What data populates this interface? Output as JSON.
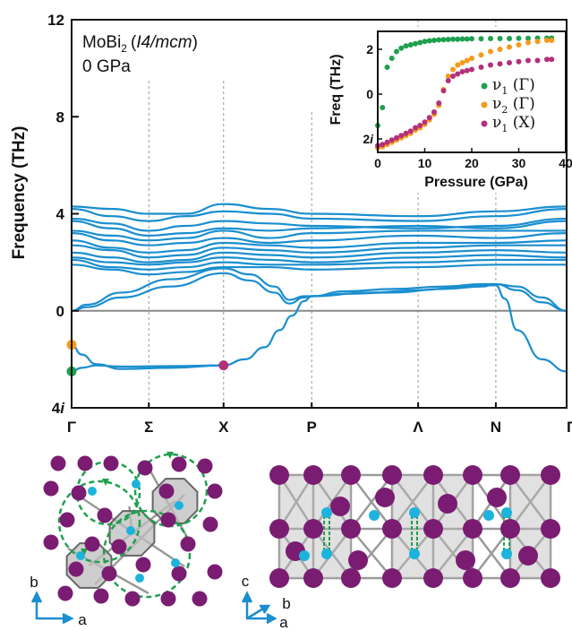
{
  "chart_data": [
    {
      "type": "line",
      "title": "MoBi2 (I4/mcm)",
      "title_parts": {
        "compound_base": "MoBi",
        "compound_sub": "2",
        "space_group_open": "(",
        "space_group_italic": "I4/mcm",
        "space_group_close": ")"
      },
      "subtitle": "0 GPa",
      "ylabel": "Frequency (THz)",
      "xlabel": "",
      "yticks": [
        "12",
        "8",
        "4",
        "0",
        "4i"
      ],
      "ytick_values": [
        12,
        8,
        4,
        0,
        -4
      ],
      "ylim": [
        -4,
        12
      ],
      "imaginary_frequencies_negative": true,
      "kpath": [
        "Γ",
        "Σ",
        "X",
        "P",
        "Λ",
        "N",
        "Γ"
      ],
      "kpath_positions": [
        0,
        0.156,
        0.307,
        0.485,
        0.7,
        0.857,
        1.0
      ],
      "high_symmetry_lines_dashed": true,
      "zero_line": true,
      "line_color": "#1a8ecf",
      "acoustic_branches": [
        {
          "name": "",
          "x": [
            0,
            0.03,
            0.1,
            0.2,
            0.307,
            0.36,
            0.41,
            0.44,
            0.47,
            0.485,
            0.55,
            0.65,
            0.75,
            0.83,
            0.857,
            0.9,
            0.95,
            1.0
          ],
          "y": [
            0,
            0.15,
            0.55,
            1.0,
            1.55,
            1.25,
            0.75,
            0.3,
            0.55,
            0.6,
            0.7,
            0.75,
            0.9,
            1.0,
            1.1,
            0.85,
            0.35,
            0
          ]
        },
        {
          "name": "",
          "x": [
            0,
            0.03,
            0.1,
            0.2,
            0.307,
            0.36,
            0.41,
            0.44,
            0.47,
            0.485,
            0.55,
            0.65,
            0.75,
            0.83,
            0.857,
            0.9,
            0.95,
            1.0
          ],
          "y": [
            0,
            0.25,
            0.75,
            1.3,
            1.75,
            1.5,
            1.0,
            0.45,
            0.6,
            0.6,
            0.8,
            0.9,
            1.0,
            1.1,
            1.1,
            1.0,
            0.55,
            0
          ]
        }
      ],
      "soft_branch": {
        "x": [
          0,
          0.02,
          0.05,
          0.1,
          0.2,
          0.307,
          0.35,
          0.39,
          0.42,
          0.445,
          0.47,
          0.485,
          0.485,
          0.6,
          0.7,
          0.8,
          0.857,
          0.875,
          0.9,
          0.95,
          1.0
        ],
        "y": [
          -2.5,
          -2.35,
          -2.25,
          -2.3,
          -2.28,
          -2.25,
          -2.0,
          -1.5,
          -0.8,
          -0.2,
          0.4,
          0.6,
          0.6,
          0.75,
          0.85,
          1.0,
          1.05,
          0.5,
          -0.8,
          -2.0,
          -2.5
        ]
      },
      "soft_branch_2": {
        "x": [
          0,
          0.02,
          0.05,
          0.1,
          0.2,
          0.307
        ],
        "y": [
          -1.4,
          -1.8,
          -2.2,
          -2.4,
          -2.35,
          -2.25
        ]
      },
      "optical_branches": [
        [
          4.3,
          4.2,
          4.0,
          4.0,
          4.4,
          4.2,
          4.0,
          3.9,
          4.1,
          4.3
        ],
        [
          4.2,
          3.9,
          3.7,
          3.9,
          4.1,
          4.0,
          3.8,
          3.7,
          3.9,
          4.2
        ],
        [
          3.8,
          3.6,
          3.3,
          3.5,
          3.7,
          3.6,
          3.5,
          3.4,
          3.5,
          3.8
        ],
        [
          3.7,
          3.4,
          3.1,
          3.2,
          3.4,
          3.3,
          3.4,
          3.5,
          3.4,
          3.7
        ],
        [
          3.3,
          3.1,
          2.9,
          3.0,
          3.3,
          3.0,
          3.2,
          3.3,
          3.3,
          3.3
        ],
        [
          3.2,
          2.9,
          2.7,
          2.8,
          3.0,
          2.8,
          2.9,
          3.1,
          3.0,
          3.2
        ],
        [
          2.9,
          2.6,
          2.4,
          2.5,
          2.8,
          2.7,
          2.6,
          2.8,
          2.8,
          2.9
        ],
        [
          2.7,
          2.5,
          2.2,
          2.3,
          2.6,
          2.5,
          2.4,
          2.6,
          2.7,
          2.7
        ],
        [
          2.4,
          2.2,
          2.0,
          2.1,
          2.4,
          2.3,
          2.2,
          2.4,
          2.5,
          2.4
        ],
        [
          2.2,
          2.0,
          1.9,
          2.0,
          2.2,
          2.1,
          2.0,
          2.2,
          2.3,
          2.2
        ],
        [
          2.1,
          1.8,
          1.7,
          1.8,
          2.0,
          1.9,
          1.9,
          2.0,
          2.1,
          2.1
        ],
        [
          1.9,
          1.7,
          1.5,
          1.6,
          1.8,
          1.8,
          1.7,
          1.8,
          1.9,
          1.9
        ]
      ],
      "optical_x": [
        0,
        0.08,
        0.156,
        0.23,
        0.307,
        0.4,
        0.485,
        0.7,
        0.857,
        1.0
      ],
      "marked_points": [
        {
          "label": "Γ1",
          "x": 0,
          "y": -2.5,
          "color": "#1fa04f"
        },
        {
          "label": "Γ2",
          "x": 0,
          "y": -1.4,
          "color": "#f59a1b"
        },
        {
          "label": "X1",
          "x": 0.307,
          "y": -2.25,
          "color": "#b3307a"
        }
      ]
    },
    {
      "type": "scatter",
      "title": "",
      "xlabel": "Pressure (GPa)",
      "ylabel": "Freq (THz)",
      "xticks": [
        "0",
        "10",
        "20",
        "30",
        "40"
      ],
      "xtick_values": [
        0,
        10,
        20,
        30,
        40
      ],
      "xlim": [
        0,
        40
      ],
      "yticks": [
        "2",
        "0",
        "2i"
      ],
      "ytick_values": [
        2,
        0,
        -2
      ],
      "ylim": [
        -2.6,
        2.8
      ],
      "imaginary_frequencies_negative": true,
      "legend": "right",
      "series": [
        {
          "name": "ν1 (Γ)",
          "symbol": "ν",
          "sub": "1",
          "point": " (Γ)",
          "color": "#1fa04f",
          "x": [
            0,
            1,
            2,
            3,
            4,
            5,
            6,
            7,
            8,
            9,
            10,
            11,
            12,
            13,
            14,
            15,
            16,
            17,
            18,
            19,
            20,
            22,
            24,
            26,
            28,
            30,
            32,
            34,
            36,
            37
          ],
          "y": [
            -1.4,
            -0.6,
            1.2,
            1.6,
            1.9,
            2.05,
            2.15,
            2.2,
            2.25,
            2.3,
            2.35,
            2.38,
            2.4,
            2.42,
            2.43,
            2.44,
            2.45,
            2.45,
            2.46,
            2.46,
            2.47,
            2.47,
            2.48,
            2.48,
            2.48,
            2.49,
            2.49,
            2.5,
            2.5,
            2.5
          ]
        },
        {
          "name": "ν2 (Γ)",
          "symbol": "ν",
          "sub": "2",
          "point": " (Γ)",
          "color": "#f59a1b",
          "x": [
            0,
            1,
            2,
            3,
            4,
            5,
            6,
            7,
            8,
            9,
            10,
            11,
            12,
            13,
            14,
            15,
            16,
            17,
            18,
            19,
            20,
            22,
            24,
            26,
            28,
            30,
            32,
            34,
            36,
            37
          ],
          "y": [
            -2.4,
            -2.35,
            -2.25,
            -2.15,
            -2.05,
            -1.95,
            -1.85,
            -1.75,
            -1.6,
            -1.5,
            -1.35,
            -1.15,
            -0.9,
            -0.5,
            0.2,
            0.8,
            1.1,
            1.3,
            1.4,
            1.5,
            1.6,
            1.75,
            1.9,
            2.0,
            2.1,
            2.2,
            2.3,
            2.35,
            2.4,
            2.4
          ]
        },
        {
          "name": "ν1 (X)",
          "symbol": "ν",
          "sub": "1",
          "point": " (X)",
          "color": "#b3307a",
          "x": [
            0,
            1,
            2,
            3,
            4,
            5,
            6,
            7,
            8,
            9,
            10,
            11,
            12,
            13,
            14,
            15,
            16,
            17,
            18,
            19,
            20,
            22,
            24,
            26,
            28,
            30,
            32,
            34,
            36,
            37
          ],
          "y": [
            -2.3,
            -2.25,
            -2.15,
            -2.05,
            -1.95,
            -1.85,
            -1.75,
            -1.65,
            -1.5,
            -1.4,
            -1.25,
            -1.05,
            -0.8,
            -0.4,
            0.15,
            0.6,
            0.8,
            0.9,
            1.0,
            1.05,
            1.1,
            1.2,
            1.3,
            1.35,
            1.4,
            1.45,
            1.5,
            1.5,
            1.55,
            1.55
          ]
        }
      ]
    }
  ],
  "structures": {
    "top_view_axes": [
      "b",
      "a"
    ],
    "side_view_axes": [
      "c",
      "b",
      "a"
    ],
    "colors": {
      "bi_atom": "#7a1d72",
      "mo_atom": "#1cb3dc",
      "cage": "#bdbdbd",
      "rotation_arrows": "#1fa04f",
      "axis_arrows": "#1a8ecf"
    }
  }
}
